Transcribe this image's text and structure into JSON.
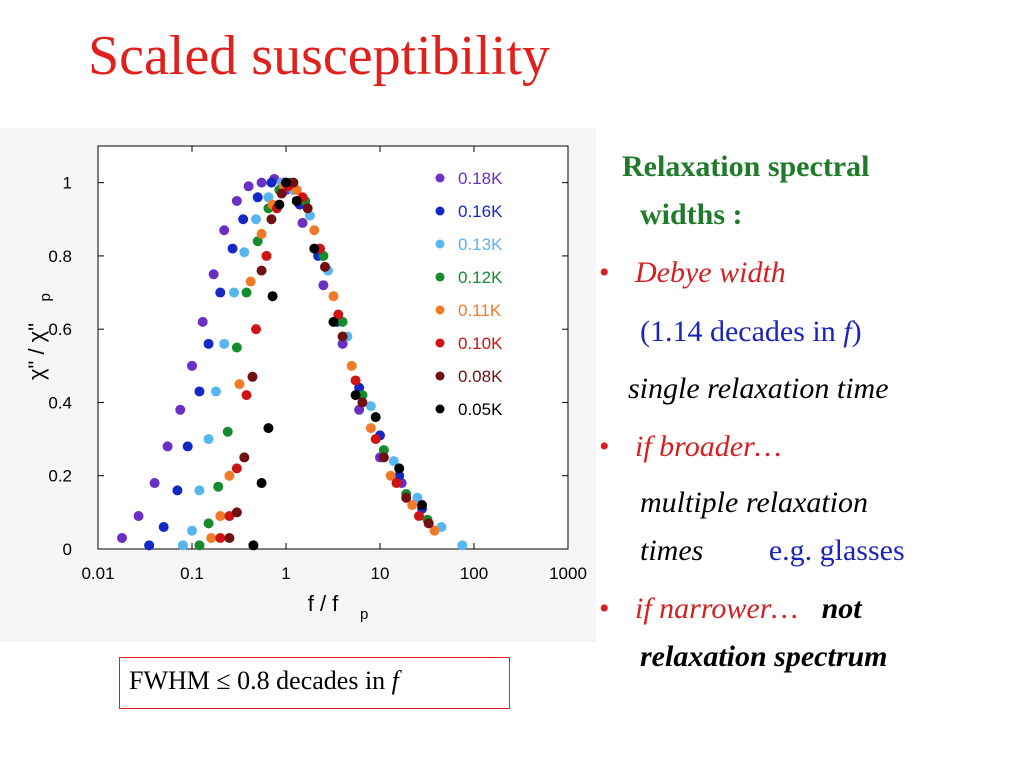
{
  "slide": {
    "title": "Scaled susceptibility",
    "fwhm_box": {
      "text": "FWHM ≤ 0.8 decades in ",
      "var": "f"
    },
    "right": {
      "heading_line1": "Relaxation spectral",
      "heading_line2": "widths :",
      "bullet": "•",
      "item1_label": "Debye width",
      "item1_detail_pre": "(1.14 decades in ",
      "item1_detail_var": "f",
      "item1_detail_post": ")",
      "item1_note": "single relaxation time",
      "item2_label": "if broader…",
      "item2_line1": "multiple relaxation",
      "item2_line2": "times",
      "item2_example": "e.g. glasses",
      "item3_label": "if narrower…",
      "item3_bold": "not",
      "item3_line2": "relaxation spectrum"
    }
  },
  "chart_data": {
    "type": "scatter",
    "xscale": "log",
    "xlim": [
      0.01,
      1000
    ],
    "ylim": [
      0,
      1.1
    ],
    "xticks": [
      "0.01",
      "0.1",
      "1",
      "10",
      "100",
      "1000"
    ],
    "yticks": [
      "0",
      "0.2",
      "0.4",
      "0.6",
      "0.8",
      "1"
    ],
    "xlabel": "f / f",
    "xlabel_sub": "p",
    "ylabel": "χ\" / χ\"",
    "ylabel_sub": "p",
    "legend_position": "top-right",
    "series": [
      {
        "name": "0.18K",
        "color": "#6a2fc4",
        "x": [
          0.018,
          0.027,
          0.04,
          0.055,
          0.075,
          0.1,
          0.13,
          0.17,
          0.22,
          0.3,
          0.4,
          0.55,
          0.75,
          1.0,
          1.5,
          2.5,
          4,
          6,
          10,
          17
        ],
        "y": [
          0.03,
          0.09,
          0.18,
          0.28,
          0.38,
          0.5,
          0.62,
          0.75,
          0.87,
          0.95,
          0.99,
          1.0,
          1.01,
          0.98,
          0.89,
          0.72,
          0.56,
          0.38,
          0.25,
          0.18
        ]
      },
      {
        "name": "0.16K",
        "color": "#1428c8",
        "x": [
          0.035,
          0.05,
          0.07,
          0.09,
          0.12,
          0.15,
          0.2,
          0.27,
          0.35,
          0.5,
          0.7,
          0.95,
          1.4,
          2.2,
          3.5,
          6,
          10,
          16,
          28
        ],
        "y": [
          0.01,
          0.06,
          0.16,
          0.28,
          0.43,
          0.56,
          0.7,
          0.82,
          0.9,
          0.96,
          1.0,
          1.0,
          0.94,
          0.8,
          0.62,
          0.44,
          0.31,
          0.2,
          0.11
        ]
      },
      {
        "name": "0.13K",
        "color": "#58b6ee",
        "x": [
          0.08,
          0.1,
          0.12,
          0.15,
          0.18,
          0.22,
          0.28,
          0.36,
          0.48,
          0.65,
          0.9,
          1.2,
          1.8,
          2.8,
          4.5,
          8,
          14,
          25,
          45,
          75
        ],
        "y": [
          0.01,
          0.05,
          0.16,
          0.3,
          0.43,
          0.56,
          0.7,
          0.81,
          0.9,
          0.96,
          1.0,
          0.98,
          0.91,
          0.76,
          0.58,
          0.39,
          0.24,
          0.14,
          0.06,
          0.01
        ]
      },
      {
        "name": "0.12K",
        "color": "#168a2c",
        "x": [
          0.12,
          0.15,
          0.19,
          0.24,
          0.3,
          0.38,
          0.5,
          0.65,
          0.85,
          1.1,
          1.6,
          2.5,
          4,
          6.5,
          11,
          19,
          32
        ],
        "y": [
          0.01,
          0.07,
          0.17,
          0.32,
          0.55,
          0.7,
          0.84,
          0.93,
          0.98,
          1.0,
          0.95,
          0.8,
          0.62,
          0.42,
          0.27,
          0.15,
          0.08
        ]
      },
      {
        "name": "0.11K",
        "color": "#f07a28",
        "x": [
          0.16,
          0.2,
          0.25,
          0.32,
          0.42,
          0.55,
          0.72,
          0.95,
          1.3,
          2,
          3.2,
          5,
          8,
          13,
          22,
          38
        ],
        "y": [
          0.03,
          0.09,
          0.2,
          0.45,
          0.73,
          0.86,
          0.94,
          0.99,
          0.98,
          0.87,
          0.69,
          0.5,
          0.33,
          0.2,
          0.12,
          0.05
        ]
      },
      {
        "name": "0.10K",
        "color": "#d01414",
        "x": [
          0.2,
          0.25,
          0.3,
          0.38,
          0.48,
          0.62,
          0.8,
          1.05,
          1.5,
          2.3,
          3.6,
          5.5,
          9,
          15,
          26
        ],
        "y": [
          0.03,
          0.09,
          0.22,
          0.42,
          0.6,
          0.8,
          0.93,
          0.99,
          0.96,
          0.82,
          0.64,
          0.46,
          0.3,
          0.18,
          0.09
        ]
      },
      {
        "name": "0.08K",
        "color": "#701010",
        "x": [
          0.25,
          0.3,
          0.36,
          0.44,
          0.55,
          0.7,
          0.9,
          1.2,
          1.7,
          2.6,
          4,
          6.5,
          11,
          19,
          33
        ],
        "y": [
          0.03,
          0.1,
          0.25,
          0.47,
          0.76,
          0.9,
          0.97,
          1.0,
          0.93,
          0.77,
          0.58,
          0.4,
          0.25,
          0.14,
          0.07
        ]
      },
      {
        "name": "0.05K",
        "color": "#000000",
        "x": [
          0.45,
          0.55,
          0.65,
          0.72,
          0.85,
          1.0,
          1.3,
          2.0,
          3.2,
          5.5,
          9,
          16,
          28
        ],
        "y": [
          0.01,
          0.18,
          0.33,
          0.69,
          0.94,
          1.0,
          0.95,
          0.82,
          0.62,
          0.42,
          0.36,
          0.22,
          0.12
        ]
      }
    ]
  }
}
